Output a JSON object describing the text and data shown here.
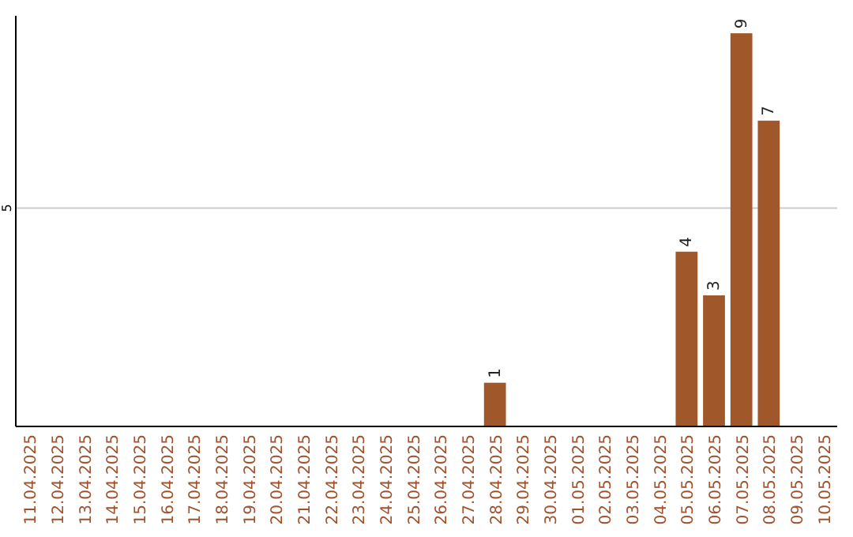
{
  "chart_data": {
    "type": "bar",
    "categories": [
      "11.04.2025",
      "12.04.2025",
      "13.04.2025",
      "14.04.2025",
      "15.04.2025",
      "16.04.2025",
      "17.04.2025",
      "18.04.2025",
      "19.04.2025",
      "20.04.2025",
      "21.04.2025",
      "22.04.2025",
      "23.04.2025",
      "24.04.2025",
      "25.04.2025",
      "26.04.2025",
      "27.04.2025",
      "28.04.2025",
      "29.04.2025",
      "30.04.2025",
      "01.05.2025",
      "02.05.2025",
      "03.05.2025",
      "04.05.2025",
      "05.05.2025",
      "06.05.2025",
      "07.05.2025",
      "08.05.2025",
      "09.05.2025",
      "10.05.2025"
    ],
    "values": [
      null,
      null,
      null,
      null,
      null,
      null,
      null,
      null,
      null,
      null,
      null,
      null,
      null,
      null,
      null,
      null,
      null,
      1,
      null,
      null,
      null,
      null,
      null,
      null,
      4,
      3,
      9,
      7,
      null,
      null
    ],
    "color": "#a0572a",
    "ylim": [
      0,
      9.4
    ],
    "yticks": [
      5
    ],
    "grid": "y",
    "data_labels": true
  }
}
